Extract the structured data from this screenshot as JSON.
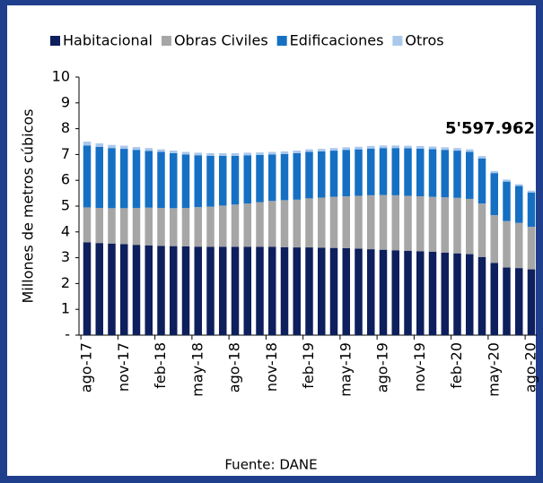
{
  "chart_data": {
    "type": "stacked_bar",
    "y_label": "Millones de metros cúbicos",
    "annotation": "5'597.962",
    "source": "Fuente: DANE",
    "categories": [
      "ago-17",
      null,
      null,
      "nov-17",
      null,
      null,
      "feb-18",
      null,
      null,
      "may-18",
      null,
      null,
      "ago-18",
      null,
      null,
      "nov-18",
      null,
      null,
      "feb-19",
      null,
      null,
      "may-19",
      null,
      null,
      "ago-19",
      null,
      null,
      "nov-19",
      null,
      null,
      "feb-20",
      null,
      null,
      "may-20",
      null,
      null,
      "ago-20"
    ],
    "series": [
      {
        "name": "Habitacional",
        "color": "#0d1f5c",
        "values": [
          3.6,
          3.57,
          3.55,
          3.53,
          3.5,
          3.48,
          3.46,
          3.45,
          3.44,
          3.43,
          3.42,
          3.42,
          3.42,
          3.42,
          3.42,
          3.42,
          3.41,
          3.4,
          3.4,
          3.39,
          3.38,
          3.37,
          3.35,
          3.33,
          3.31,
          3.29,
          3.27,
          3.25,
          3.23,
          3.2,
          3.17,
          3.14,
          3.03,
          2.8,
          2.62,
          2.6,
          2.55
        ]
      },
      {
        "name": "Obras Civiles",
        "color": "#a6a6a6",
        "values": [
          1.35,
          1.36,
          1.37,
          1.39,
          1.43,
          1.46,
          1.47,
          1.47,
          1.49,
          1.53,
          1.56,
          1.6,
          1.64,
          1.68,
          1.73,
          1.78,
          1.82,
          1.85,
          1.9,
          1.94,
          1.98,
          2.01,
          2.05,
          2.09,
          2.12,
          2.13,
          2.13,
          2.13,
          2.13,
          2.14,
          2.15,
          2.14,
          2.07,
          1.85,
          1.8,
          1.75,
          1.65
        ]
      },
      {
        "name": "Edificaciones",
        "color": "#1570c4",
        "values": [
          2.4,
          2.37,
          2.33,
          2.3,
          2.25,
          2.2,
          2.17,
          2.13,
          2.07,
          2.01,
          1.97,
          1.93,
          1.89,
          1.87,
          1.83,
          1.8,
          1.79,
          1.8,
          1.8,
          1.79,
          1.79,
          1.8,
          1.8,
          1.81,
          1.82,
          1.83,
          1.84,
          1.85,
          1.85,
          1.84,
          1.83,
          1.82,
          1.75,
          1.63,
          1.53,
          1.43,
          1.33
        ]
      },
      {
        "name": "Otros",
        "color": "#a9c8ec",
        "values": [
          0.15,
          0.13,
          0.12,
          0.12,
          0.11,
          0.11,
          0.1,
          0.1,
          0.1,
          0.1,
          0.1,
          0.1,
          0.1,
          0.1,
          0.1,
          0.1,
          0.1,
          0.1,
          0.1,
          0.1,
          0.1,
          0.1,
          0.1,
          0.1,
          0.1,
          0.1,
          0.1,
          0.1,
          0.1,
          0.1,
          0.1,
          0.1,
          0.09,
          0.08,
          0.08,
          0.07,
          0.07
        ]
      }
    ],
    "ylim": [
      0,
      10
    ],
    "yticks": [
      {
        "value": 0,
        "label": "-"
      },
      1,
      2,
      3,
      4,
      5,
      6,
      7,
      8,
      9,
      10
    ],
    "legend": "top"
  }
}
